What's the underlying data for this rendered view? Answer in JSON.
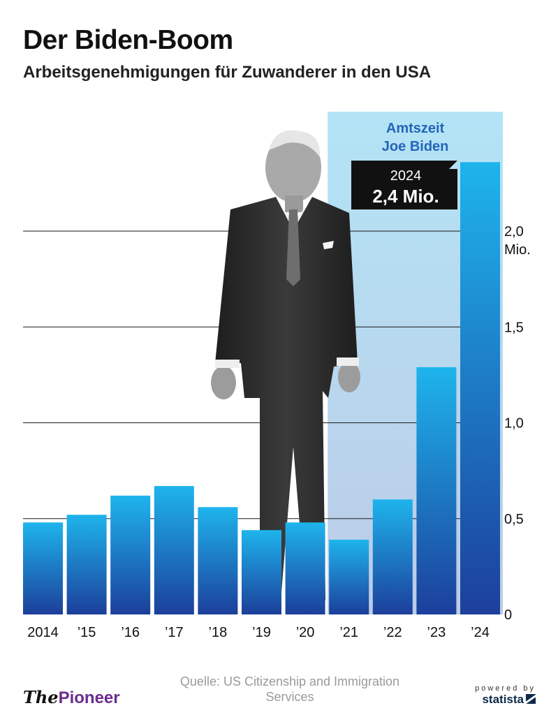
{
  "title": "Der Biden-Boom",
  "subtitle": "Arbeitsgenehmigungen für Zuwanderer in den USA",
  "chart_data": {
    "type": "bar",
    "categories": [
      "2014",
      "’15",
      "’16",
      "’17",
      "’18",
      "’19",
      "’20",
      "’21",
      "’22",
      "’23",
      "’24"
    ],
    "values": [
      0.48,
      0.52,
      0.62,
      0.67,
      0.56,
      0.44,
      0.48,
      0.39,
      0.6,
      1.29,
      2.36
    ],
    "unit": "Mio.",
    "ylim": [
      0,
      2.4
    ],
    "yticks": [
      {
        "value": 0,
        "label": "0"
      },
      {
        "value": 0.5,
        "label": "0,5"
      },
      {
        "value": 1.0,
        "label": "1,0"
      },
      {
        "value": 1.5,
        "label": "1,5"
      },
      {
        "value": 2.0,
        "label": "2,0"
      }
    ],
    "y_unit_label": "Mio.",
    "highlight": {
      "label_line1": "Amtszeit",
      "label_line2": "Joe Biden",
      "from_index": 7,
      "to_index": 10
    },
    "callout": {
      "year": "2024",
      "value_label": "2,4 Mio.",
      "index": 10
    },
    "colors": {
      "bar_top": "#1eb4ec",
      "bar_bottom": "#1c3f9b",
      "highlight_top": "#b3e4f6",
      "highlight_bottom": "#bccbe6",
      "highlight_label": "#2565b8",
      "gridline": "#1a1a1a",
      "callout_bg": "#111111"
    }
  },
  "footer": {
    "brand_prefix": "The",
    "brand_name": "Pioneer",
    "source": "Quelle: US Citizenship and Immigration Services",
    "powered_by": "powered by",
    "statista": "statista"
  }
}
